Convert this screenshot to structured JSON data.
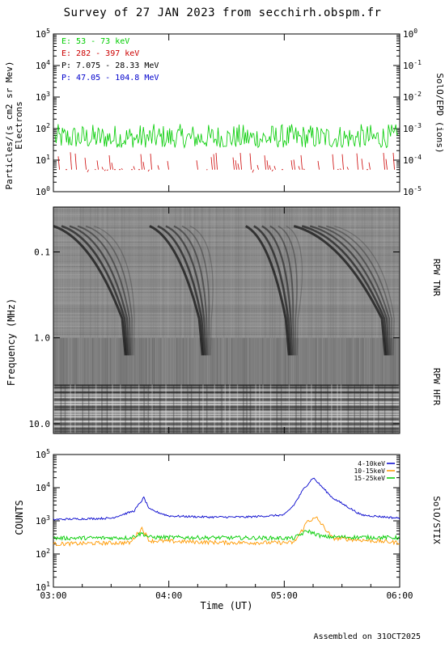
{
  "title": "Survey of 27 JAN 2023 from secchirh.obspm.fr",
  "footer": "Assembled on 31OCT2025",
  "colors": {
    "electrons_low": "#00cc00",
    "electrons_high": "#cc0000",
    "protons_low": "#000000",
    "protons_high": "#0000cc",
    "stix_4_10": "#0000cc",
    "stix_10_15": "#ff9900",
    "stix_15_25": "#00cc00"
  },
  "chart_data": [
    {
      "type": "line",
      "panel": "epd",
      "ylabel": "Particles/(s cm2 sr Mev)",
      "ylabel2": "Electrons",
      "right_label": "SolO/EPD (ions)",
      "yscale": "log",
      "ylim": [
        1,
        100000
      ],
      "y_ticks": [
        "10^0",
        "10^1",
        "10^2",
        "10^3",
        "10^4",
        "10^5"
      ],
      "right_ticks": [
        "10^-5",
        "10^-4",
        "10^-3",
        "10^-2",
        "10^-1",
        "10^0"
      ],
      "xlim": [
        "03:00",
        "06:00"
      ],
      "legend": [
        "E: 53 - 73 keV",
        "E: 282 - 397 keV",
        "P: 7.075 - 28.33 MeV",
        "P: 47.05 - 104.8 MeV"
      ],
      "series": [
        {
          "name": "E: 53 - 73 keV",
          "level": 50,
          "range": [
            25,
            140
          ]
        },
        {
          "name": "E: 282 - 397 keV",
          "level": 5,
          "range": [
            4,
            18
          ]
        }
      ]
    },
    {
      "type": "heatmap",
      "panel": "rpw",
      "ylabel": "Frequency (MHz)",
      "yscale": "log",
      "y_ticks": [
        "0.1",
        "1.0",
        "10.0"
      ],
      "y_tick_values": [
        0.1,
        1.0,
        10.0
      ],
      "ylim": [
        0.03,
        13
      ],
      "right_labels": [
        "RPW TNR",
        "RPW HFR"
      ],
      "xlim": [
        "03:00",
        "06:00"
      ],
      "bursts": [
        {
          "start": "03:00",
          "end": "03:40"
        },
        {
          "start": "03:50",
          "end": "04:20"
        },
        {
          "start": "04:40",
          "end": "05:05"
        },
        {
          "start": "05:05",
          "end": "05:55"
        }
      ]
    },
    {
      "type": "line",
      "panel": "stix",
      "ylabel": "COUNTS",
      "right_label": "SolO/STIX",
      "xlabel": "Time (UT)",
      "yscale": "log",
      "ylim": [
        10,
        100000
      ],
      "y_ticks": [
        "10^1",
        "10^2",
        "10^3",
        "10^4",
        "10^5"
      ],
      "x_ticks": [
        "03:00",
        "04:00",
        "05:00",
        "06:00"
      ],
      "xlim": [
        "03:00",
        "06:00"
      ],
      "series": [
        {
          "name": "4-10keV",
          "x": [
            "03:00",
            "03:30",
            "03:42",
            "03:47",
            "03:50",
            "04:00",
            "04:20",
            "04:40",
            "05:00",
            "05:05",
            "05:10",
            "05:15",
            "05:25",
            "05:40",
            "06:00"
          ],
          "y": [
            1100,
            1200,
            2000,
            5000,
            2200,
            1400,
            1300,
            1300,
            1500,
            3000,
            9000,
            20000,
            5000,
            1500,
            1200
          ]
        },
        {
          "name": "10-15keV",
          "x": [
            "03:00",
            "03:40",
            "03:46",
            "03:50",
            "04:30",
            "05:05",
            "05:10",
            "05:12",
            "05:17",
            "05:25",
            "06:00"
          ],
          "y": [
            200,
            220,
            600,
            250,
            220,
            220,
            600,
            1000,
            1200,
            300,
            220
          ]
        },
        {
          "name": "15-25keV",
          "x": [
            "03:00",
            "03:40",
            "03:46",
            "03:50",
            "05:05",
            "05:12",
            "05:20",
            "06:00"
          ],
          "y": [
            300,
            310,
            420,
            320,
            300,
            500,
            330,
            310
          ]
        }
      ]
    }
  ]
}
